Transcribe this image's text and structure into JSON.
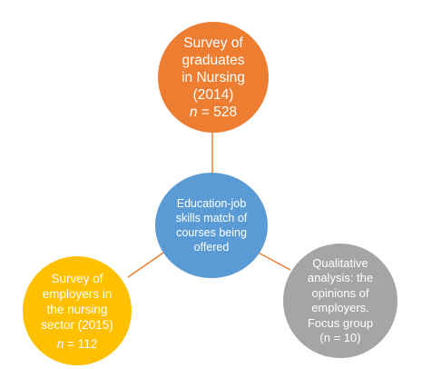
{
  "diagram": {
    "colors": {
      "top": "#ED7D31",
      "center": "#5B9BD5",
      "left": "#FFC000",
      "right": "#A5A5A5",
      "connector": "#ED7D31"
    },
    "top_node": {
      "lines": [
        "Survey of",
        "graduates",
        "in Nursing",
        "(2014)"
      ],
      "n_var": "n",
      "n_rest": " = 528"
    },
    "center_node": {
      "lines": [
        "Education-job",
        "skills match of",
        "courses being",
        "offered"
      ]
    },
    "left_node": {
      "lines": [
        "Survey of",
        "employers in",
        "the nursing",
        "sector (2015)"
      ],
      "n_var": "n",
      "n_rest": " = 112"
    },
    "right_node": {
      "lines": [
        "Qualitative",
        "analysis: the",
        "opinions of",
        "employers.",
        "Focus group",
        "(n = 10)"
      ]
    }
  }
}
